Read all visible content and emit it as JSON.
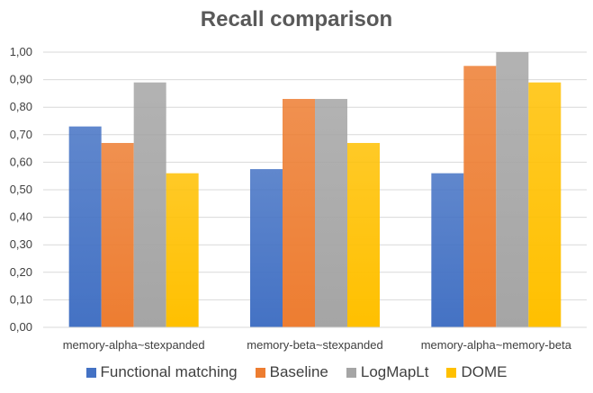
{
  "chart_data": {
    "type": "bar",
    "title": "Recall comparison",
    "categories": [
      "memory-alpha~stexpanded",
      "memory-beta~stexpanded",
      "memory-alpha~memory-beta"
    ],
    "series": [
      {
        "name": "Functional matching",
        "values": [
          0.73,
          0.575,
          0.56
        ],
        "color": "#4472C4"
      },
      {
        "name": "Baseline",
        "values": [
          0.67,
          0.83,
          0.95
        ],
        "color": "#ED7D31"
      },
      {
        "name": "LogMapLt",
        "values": [
          0.89,
          0.83,
          1.0
        ],
        "color": "#A5A5A5"
      },
      {
        "name": "DOME",
        "values": [
          0.56,
          0.67,
          0.89
        ],
        "color": "#FFC000"
      }
    ],
    "yticks": [
      "0,00",
      "0,10",
      "0,20",
      "0,30",
      "0,40",
      "0,50",
      "0,60",
      "0,70",
      "0,80",
      "0,90",
      "1,00"
    ],
    "ylim": [
      0,
      1
    ],
    "grid": true,
    "legend": "bottom"
  }
}
